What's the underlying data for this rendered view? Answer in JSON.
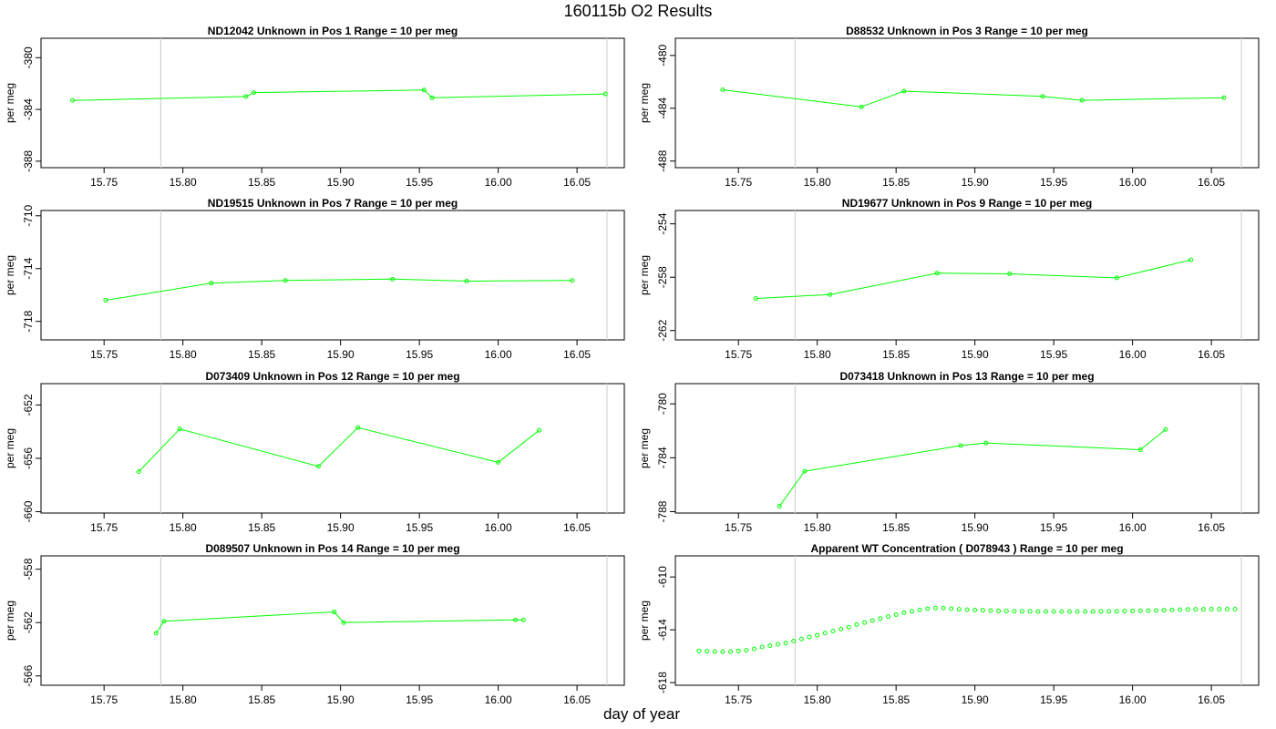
{
  "page": {
    "title": "160115b  O2 Results",
    "x_axis_title": "day of year"
  },
  "colors": {
    "series": "#00ff00",
    "vline": "#d3d3d3",
    "frame": "#000000"
  },
  "chart_data": [
    {
      "type": "line",
      "title": "ND12042    Unknown in Pos 1          Range = 10 per meg",
      "ylabel": "per meg",
      "xlim": [
        15.71,
        16.08
      ],
      "ylim": [
        -388.5,
        -378.5
      ],
      "yticks": [
        -380,
        -384,
        -388
      ],
      "xticks": [
        15.75,
        15.8,
        15.85,
        15.9,
        15.95,
        16.0,
        16.05
      ],
      "vlines": [
        15.786,
        16.069
      ],
      "markers_only": false,
      "x": [
        15.73,
        15.84,
        15.845,
        15.953,
        15.958,
        16.068
      ],
      "y": [
        -383.3,
        -383.0,
        -382.7,
        -382.5,
        -383.1,
        -382.8
      ]
    },
    {
      "type": "line",
      "title": "D88532    Unknown in Pos 3          Range = 10 per meg",
      "ylabel": "per meg",
      "xlim": [
        15.71,
        16.08
      ],
      "ylim": [
        -488.5,
        -478.7
      ],
      "yticks": [
        -480,
        -484,
        -488
      ],
      "xticks": [
        15.75,
        15.8,
        15.85,
        15.9,
        15.95,
        16.0,
        16.05
      ],
      "vlines": [
        15.786,
        16.069
      ],
      "markers_only": false,
      "x": [
        15.74,
        15.828,
        15.855,
        15.943,
        15.968,
        16.058
      ],
      "y": [
        -482.6,
        -483.9,
        -482.7,
        -483.1,
        -483.4,
        -483.2
      ]
    },
    {
      "type": "line",
      "title": "ND19515    Unknown in Pos 7          Range = 10 per meg",
      "ylabel": "per meg",
      "xlim": [
        15.71,
        16.08
      ],
      "ylim": [
        -719.4,
        -709.6
      ],
      "yticks": [
        -710,
        -714,
        -718
      ],
      "xticks": [
        15.75,
        15.8,
        15.85,
        15.9,
        15.95,
        16.0,
        16.05
      ],
      "vlines": [
        15.786,
        16.069
      ],
      "markers_only": false,
      "x": [
        15.751,
        15.818,
        15.865,
        15.933,
        15.98,
        16.047
      ],
      "y": [
        -716.4,
        -715.1,
        -714.9,
        -714.8,
        -714.95,
        -714.9
      ]
    },
    {
      "type": "line",
      "title": "ND19677    Unknown in Pos 9          Range = 10 per meg",
      "ylabel": "per meg",
      "xlim": [
        15.71,
        16.08
      ],
      "ylim": [
        -262.7,
        -253.0
      ],
      "yticks": [
        -254,
        -258,
        -262
      ],
      "xticks": [
        15.75,
        15.8,
        15.85,
        15.9,
        15.95,
        16.0,
        16.05
      ],
      "vlines": [
        15.786,
        16.069
      ],
      "markers_only": false,
      "x": [
        15.761,
        15.808,
        15.876,
        15.922,
        15.99,
        16.037
      ],
      "y": [
        -259.6,
        -259.3,
        -257.7,
        -257.75,
        -258.05,
        -256.7
      ]
    },
    {
      "type": "line",
      "title": "D073409    Unknown in Pos 12          Range = 10 per meg",
      "ylabel": "per meg",
      "xlim": [
        15.71,
        16.08
      ],
      "ylim": [
        -660.1,
        -650.4
      ],
      "yticks": [
        -652,
        -656,
        -660
      ],
      "xticks": [
        15.75,
        15.8,
        15.85,
        15.9,
        15.95,
        16.0,
        16.05
      ],
      "vlines": [
        15.786,
        16.069
      ],
      "markers_only": false,
      "x": [
        15.772,
        15.798,
        15.886,
        15.911,
        16.0,
        16.026
      ],
      "y": [
        -657.0,
        -653.8,
        -656.6,
        -653.7,
        -656.3,
        -653.9
      ]
    },
    {
      "type": "line",
      "title": "D073418    Unknown in Pos 13          Range = 10 per meg",
      "ylabel": "per meg",
      "xlim": [
        15.71,
        16.08
      ],
      "ylim": [
        -788.1,
        -778.5
      ],
      "yticks": [
        -780,
        -784,
        -788
      ],
      "xticks": [
        15.75,
        15.8,
        15.85,
        15.9,
        15.95,
        16.0,
        16.05
      ],
      "vlines": [
        15.786,
        16.069
      ],
      "markers_only": false,
      "x": [
        15.776,
        15.792,
        15.891,
        15.907,
        16.005,
        16.021
      ],
      "y": [
        -787.6,
        -785.0,
        -783.1,
        -782.9,
        -783.4,
        -781.9
      ]
    },
    {
      "type": "line",
      "title": "D089507    Unknown in Pos 14          Range = 10 per meg",
      "ylabel": "per meg",
      "xlim": [
        15.71,
        16.08
      ],
      "ylim": [
        -566.7,
        -557.0
      ],
      "yticks": [
        -558,
        -562,
        -566
      ],
      "xticks": [
        15.75,
        15.8,
        15.85,
        15.9,
        15.95,
        16.0,
        16.05
      ],
      "vlines": [
        15.786,
        16.069
      ],
      "markers_only": false,
      "x": [
        15.783,
        15.788,
        15.896,
        15.902,
        16.011,
        16.016
      ],
      "y": [
        -562.8,
        -561.9,
        -561.2,
        -562.0,
        -561.8,
        -561.8
      ]
    },
    {
      "type": "scatter",
      "title": "Apparent WT Concentration ( D078943 )          Range = 10 per meg",
      "ylabel": "per meg",
      "xlim": [
        15.71,
        16.08
      ],
      "ylim": [
        -618.2,
        -608.4
      ],
      "yticks": [
        -610,
        -614,
        -618
      ],
      "xticks": [
        15.75,
        15.8,
        15.85,
        15.9,
        15.95,
        16.0,
        16.05
      ],
      "vlines": [
        15.786,
        16.069
      ],
      "markers_only": true,
      "x": [
        15.725,
        15.73,
        15.735,
        15.74,
        15.745,
        15.75,
        15.755,
        15.76,
        15.765,
        15.77,
        15.775,
        15.78,
        15.785,
        15.79,
        15.795,
        15.8,
        15.805,
        15.81,
        15.815,
        15.82,
        15.825,
        15.83,
        15.835,
        15.84,
        15.845,
        15.85,
        15.855,
        15.86,
        15.865,
        15.87,
        15.875,
        15.88,
        15.885,
        15.89,
        15.895,
        15.9,
        15.905,
        15.91,
        15.915,
        15.92,
        15.925,
        15.93,
        15.935,
        15.94,
        15.945,
        15.95,
        15.955,
        15.96,
        15.965,
        15.97,
        15.975,
        15.98,
        15.985,
        15.99,
        15.995,
        16.0,
        16.005,
        16.01,
        16.015,
        16.02,
        16.025,
        16.03,
        16.035,
        16.04,
        16.045,
        16.05,
        16.055,
        16.06,
        16.065
      ],
      "y": [
        -615.6,
        -615.62,
        -615.65,
        -615.65,
        -615.65,
        -615.6,
        -615.55,
        -615.45,
        -615.3,
        -615.2,
        -615.1,
        -615.0,
        -614.85,
        -614.7,
        -614.55,
        -614.4,
        -614.25,
        -614.1,
        -613.95,
        -613.8,
        -613.6,
        -613.45,
        -613.3,
        -613.15,
        -613.0,
        -612.85,
        -612.7,
        -612.6,
        -612.5,
        -612.4,
        -612.35,
        -612.35,
        -612.4,
        -612.45,
        -612.48,
        -612.5,
        -612.52,
        -612.55,
        -612.57,
        -612.58,
        -612.6,
        -612.6,
        -612.6,
        -612.62,
        -612.62,
        -612.62,
        -612.62,
        -612.62,
        -612.62,
        -612.62,
        -612.62,
        -612.6,
        -612.6,
        -612.6,
        -612.58,
        -612.57,
        -612.56,
        -612.55,
        -612.54,
        -612.52,
        -612.5,
        -612.48,
        -612.46,
        -612.45,
        -612.45,
        -612.44,
        -612.44,
        -612.44,
        -612.44
      ]
    }
  ]
}
